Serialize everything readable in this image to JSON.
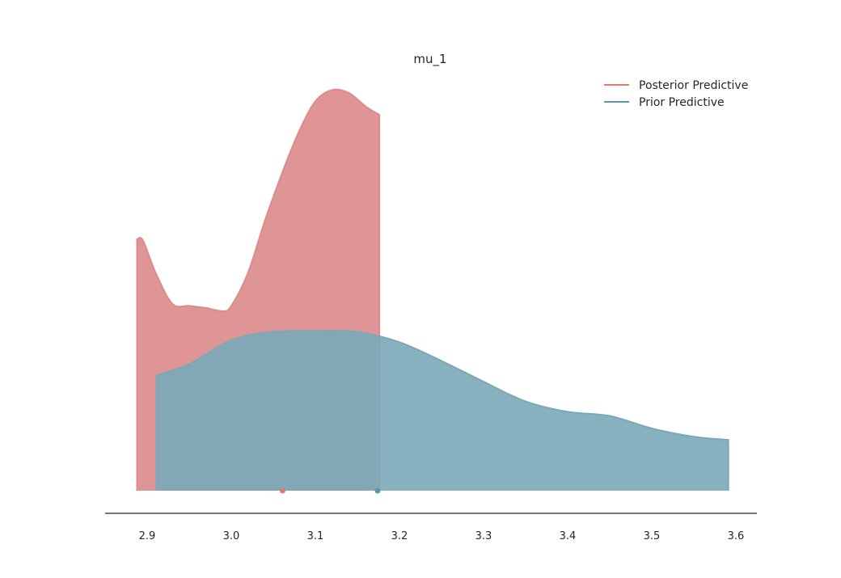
{
  "chart_data": {
    "type": "area",
    "title": "mu_1",
    "xlabel": "",
    "ylabel": "",
    "xlim": [
      2.85,
      3.625
    ],
    "ylim": [
      0,
      3.87
    ],
    "x_ticks": [
      "2.9",
      "3.0",
      "3.1",
      "3.2",
      "3.3",
      "3.4",
      "3.5",
      "3.6"
    ],
    "grid": false,
    "legend_position": "top-right",
    "series": [
      {
        "name": "Posterior Predictive",
        "color": "#e07b72",
        "fill": "#dc8a8a",
        "x": [
          2.888,
          2.895,
          2.91,
          2.93,
          2.95,
          2.97,
          2.99,
          3.0,
          3.02,
          3.04,
          3.06,
          3.08,
          3.1,
          3.12,
          3.14,
          3.16,
          3.176
        ],
        "y": [
          2.42,
          2.41,
          2.1,
          1.8,
          1.78,
          1.76,
          1.73,
          1.78,
          2.1,
          2.6,
          3.05,
          3.45,
          3.75,
          3.86,
          3.83,
          3.7,
          3.62
        ],
        "mean": 3.061
      },
      {
        "name": "Prior Predictive",
        "color": "#5b98b0",
        "fill": "#7aa8b8",
        "x": [
          2.911,
          2.95,
          3.0,
          3.05,
          3.1,
          3.15,
          3.2,
          3.25,
          3.3,
          3.35,
          3.4,
          3.45,
          3.5,
          3.55,
          3.591
        ],
        "y": [
          1.11,
          1.22,
          1.45,
          1.53,
          1.54,
          1.53,
          1.43,
          1.25,
          1.05,
          0.86,
          0.76,
          0.72,
          0.6,
          0.52,
          0.49
        ],
        "mean": 3.174
      }
    ]
  }
}
